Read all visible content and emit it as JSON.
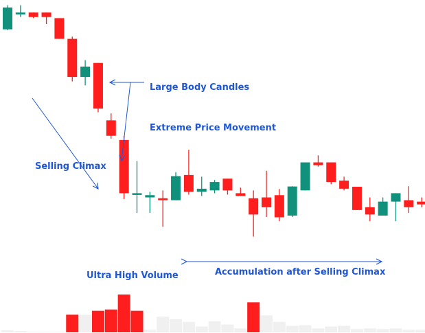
{
  "chart_data": {
    "type": "candlestick",
    "title": "",
    "xlabel": "",
    "ylabel": "",
    "grid": false,
    "ylim": [
      0,
      100
    ],
    "colors": {
      "up": "#11917b",
      "down": "#ff1e1e",
      "volume_neutral": "#f0f0f0",
      "wick": "#555555",
      "annotation": "#1f57d6"
    },
    "candles": [
      {
        "o": 91.0,
        "h": 99.6,
        "l": 90.7,
        "c": 98.8
      },
      {
        "o": 96.3,
        "h": 99.6,
        "l": 95.4,
        "c": 97.0
      },
      {
        "o": 97.0,
        "h": 97.0,
        "l": 95.0,
        "c": 95.4
      },
      {
        "o": 97.0,
        "h": 97.0,
        "l": 92.9,
        "c": 95.4
      },
      {
        "o": 95.0,
        "h": 95.0,
        "l": 87.6,
        "c": 87.6
      },
      {
        "o": 87.6,
        "h": 88.4,
        "l": 72.4,
        "c": 74.0
      },
      {
        "o": 74.0,
        "h": 80.0,
        "l": 71.0,
        "c": 77.7
      },
      {
        "o": 79.0,
        "h": 79.0,
        "l": 61.4,
        "c": 62.7
      },
      {
        "o": 58.5,
        "h": 61.0,
        "l": 52.0,
        "c": 53.0
      },
      {
        "o": 51.5,
        "h": 53.0,
        "l": 30.4,
        "c": 32.5
      },
      {
        "o": 32.0,
        "h": 44.0,
        "l": 25.5,
        "c": 32.5
      },
      {
        "o": 31.0,
        "h": 33.0,
        "l": 25.5,
        "c": 31.8
      },
      {
        "o": 30.7,
        "h": 33.5,
        "l": 20.5,
        "c": 30.0
      },
      {
        "o": 30.0,
        "h": 40.0,
        "l": 30.0,
        "c": 38.6
      },
      {
        "o": 39.0,
        "h": 48.0,
        "l": 32.0,
        "c": 33.0
      },
      {
        "o": 33.0,
        "h": 38.4,
        "l": 31.5,
        "c": 34.1
      },
      {
        "o": 33.5,
        "h": 37.2,
        "l": 32.5,
        "c": 36.5
      },
      {
        "o": 37.7,
        "h": 37.7,
        "l": 32.0,
        "c": 33.5
      },
      {
        "o": 32.5,
        "h": 34.5,
        "l": 31.5,
        "c": 31.5
      },
      {
        "o": 30.7,
        "h": 33.5,
        "l": 17.0,
        "c": 24.9
      },
      {
        "o": 31.0,
        "h": 40.5,
        "l": 24.0,
        "c": 27.5
      },
      {
        "o": 31.8,
        "h": 34.0,
        "l": 22.5,
        "c": 23.9
      },
      {
        "o": 24.5,
        "h": 35.0,
        "l": 24.0,
        "c": 34.9
      },
      {
        "o": 33.5,
        "h": 43.5,
        "l": 33.5,
        "c": 43.5
      },
      {
        "o": 43.5,
        "h": 46.0,
        "l": 42.0,
        "c": 42.5
      },
      {
        "o": 43.5,
        "h": 43.5,
        "l": 35.7,
        "c": 36.5
      },
      {
        "o": 37.0,
        "h": 38.4,
        "l": 33.5,
        "c": 34.1
      },
      {
        "o": 34.8,
        "h": 34.8,
        "l": 26.5,
        "c": 26.5
      },
      {
        "o": 27.5,
        "h": 31.0,
        "l": 22.5,
        "c": 24.9
      },
      {
        "o": 24.5,
        "h": 31.0,
        "l": 24.5,
        "c": 29.5
      },
      {
        "o": 29.5,
        "h": 32.5,
        "l": 22.5,
        "c": 32.5
      },
      {
        "o": 30.0,
        "h": 35.0,
        "l": 25.5,
        "c": 27.5
      },
      {
        "o": 29.5,
        "h": 31.0,
        "l": 27.5,
        "c": 28.5
      }
    ],
    "volume": [
      3,
      2,
      1,
      1,
      1,
      27,
      27,
      33,
      35,
      58,
      33,
      4,
      24,
      20,
      16,
      9,
      17,
      12,
      6,
      46,
      26,
      16,
      10,
      11,
      6,
      9,
      10,
      5,
      6,
      5,
      6,
      4,
      4
    ],
    "volume_highlight": [
      false,
      false,
      false,
      false,
      false,
      true,
      false,
      true,
      true,
      true,
      true,
      false,
      false,
      false,
      false,
      false,
      false,
      false,
      false,
      true,
      false,
      false,
      false,
      false,
      false,
      false,
      false,
      false,
      false,
      false,
      false,
      false,
      false
    ],
    "annotations": [
      {
        "text": "Large Body Candles"
      },
      {
        "text": "Extreme Price Movement"
      },
      {
        "text": "Selling Climax"
      },
      {
        "text": "Ultra High Volume"
      },
      {
        "text": "Accumulation after Selling Climax"
      }
    ]
  }
}
